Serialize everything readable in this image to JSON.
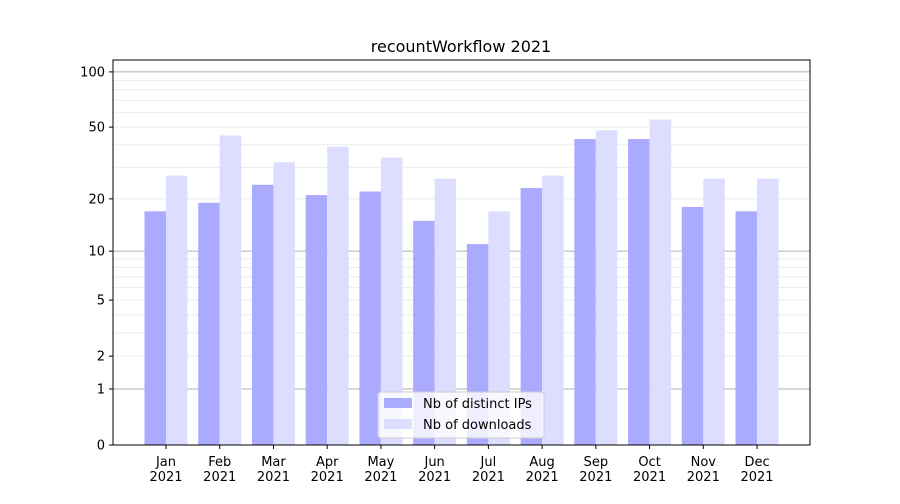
{
  "chart_data": {
    "type": "bar",
    "title": "recountWorkflow 2021",
    "xlabel": "",
    "ylabel": "",
    "yscale": "log(1+y)",
    "ylim": [
      0,
      116
    ],
    "yticks": [
      0,
      1,
      2,
      5,
      10,
      20,
      50,
      100
    ],
    "grid": true,
    "legend_position": "lower center",
    "categories": [
      "Jan\n2021",
      "Feb\n2021",
      "Mar\n2021",
      "Apr\n2021",
      "May\n2021",
      "Jun\n2021",
      "Jul\n2021",
      "Aug\n2021",
      "Sep\n2021",
      "Oct\n2021",
      "Nov\n2021",
      "Dec\n2021"
    ],
    "series": [
      {
        "name": "Nb of distinct IPs",
        "color": "#aaaaff",
        "values": [
          17,
          19,
          24,
          21,
          22,
          15,
          11,
          23,
          43,
          43,
          18,
          17
        ]
      },
      {
        "name": "Nb of downloads",
        "color": "#ddddff",
        "values": [
          27,
          45,
          32,
          39,
          34,
          26,
          17,
          27,
          48,
          55,
          26,
          26
        ]
      }
    ]
  }
}
